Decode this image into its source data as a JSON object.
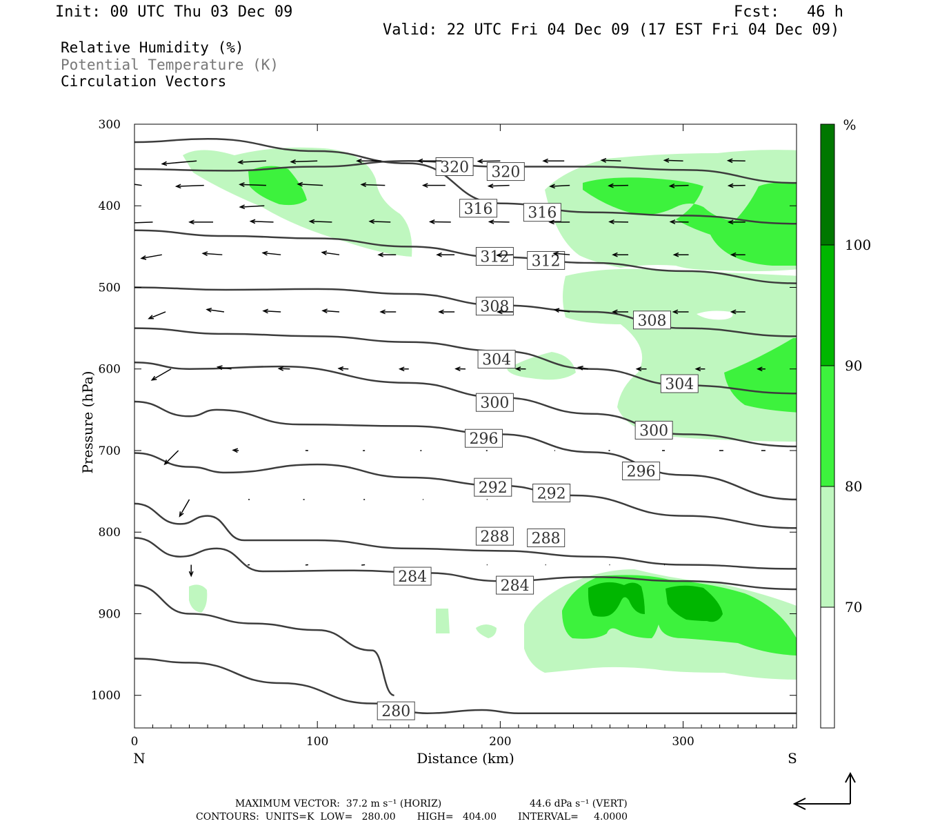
{
  "header": {
    "init": "Init: 00 UTC Thu 03 Dec 09",
    "fcst": "Fcst:   46 h",
    "valid": "Valid: 22 UTC Fri 04 Dec 09 (17 EST Fri 04 Dec 09)"
  },
  "legend": {
    "line1": "Relative Humidity (%)",
    "line2": "Potential Temperature (K)",
    "line3": "Circulation Vectors"
  },
  "colors": {
    "rh70": "#bff7bf",
    "rh80": "#3df23d",
    "rh90": "#00b600",
    "rh100": "#007700",
    "theta": "#3c3c3c",
    "vector": "#000000"
  },
  "chart_data": {
    "type": "contour",
    "xlabel": "Distance (km)",
    "ylabel": "Pressure (hPa)",
    "xlim": [
      0,
      362
    ],
    "ylim": [
      1040,
      300
    ],
    "x_ticks": [
      0,
      100,
      200,
      300
    ],
    "y_ticks": [
      300,
      400,
      500,
      600,
      700,
      800,
      900,
      1000
    ],
    "x_end_labels": [
      "N",
      "S"
    ],
    "colorbar": {
      "unit": "%",
      "levels": [
        70,
        80,
        90,
        100
      ]
    },
    "theta_contours": [
      {
        "label": "320",
        "points": [
          [
            0,
            355
          ],
          [
            50,
            357
          ],
          [
            100,
            352
          ],
          [
            150,
            345
          ],
          [
            200,
            352
          ],
          [
            250,
            352
          ],
          [
            300,
            356
          ],
          [
            362,
            372
          ]
        ],
        "label_at": [
          [
            175,
            352
          ],
          [
            203,
            358
          ]
        ]
      },
      {
        "label": "316",
        "points": [
          [
            0,
            322
          ],
          [
            40,
            318
          ],
          [
            100,
            333
          ],
          [
            150,
            348
          ],
          [
            200,
            397
          ],
          [
            250,
            408
          ],
          [
            300,
            412
          ],
          [
            362,
            422
          ]
        ],
        "label_at": [
          [
            188,
            403
          ],
          [
            223,
            408
          ]
        ]
      },
      {
        "label": "312",
        "points": [
          [
            0,
            430
          ],
          [
            50,
            437
          ],
          [
            100,
            440
          ],
          [
            150,
            450
          ],
          [
            200,
            463
          ],
          [
            250,
            470
          ],
          [
            300,
            480
          ],
          [
            362,
            495
          ]
        ],
        "label_at": [
          [
            197,
            462
          ],
          [
            225,
            467
          ]
        ]
      },
      {
        "label": "308",
        "points": [
          [
            0,
            500
          ],
          [
            50,
            503
          ],
          [
            100,
            502
          ],
          [
            150,
            508
          ],
          [
            200,
            522
          ],
          [
            250,
            530
          ],
          [
            300,
            550
          ],
          [
            362,
            560
          ]
        ],
        "label_at": [
          [
            197,
            523
          ],
          [
            283,
            540
          ]
        ]
      },
      {
        "label": "304",
        "points": [
          [
            0,
            550
          ],
          [
            50,
            557
          ],
          [
            100,
            560
          ],
          [
            150,
            567
          ],
          [
            200,
            578
          ],
          [
            250,
            600
          ],
          [
            300,
            620
          ],
          [
            362,
            630
          ]
        ],
        "label_at": [
          [
            198,
            588
          ],
          [
            298,
            618
          ]
        ]
      },
      {
        "label": "300",
        "points": [
          [
            0,
            592
          ],
          [
            30,
            600
          ],
          [
            80,
            597
          ],
          [
            150,
            617
          ],
          [
            200,
            635
          ],
          [
            250,
            655
          ],
          [
            300,
            680
          ],
          [
            362,
            695
          ]
        ],
        "label_at": [
          [
            197,
            641
          ],
          [
            284,
            675
          ]
        ]
      },
      {
        "label": "296",
        "points": [
          [
            0,
            640
          ],
          [
            30,
            658
          ],
          [
            45,
            650
          ],
          [
            90,
            668
          ],
          [
            150,
            670
          ],
          [
            200,
            680
          ],
          [
            250,
            702
          ],
          [
            300,
            730
          ],
          [
            362,
            760
          ]
        ],
        "label_at": [
          [
            191,
            685
          ],
          [
            277,
            725
          ]
        ]
      },
      {
        "label": "292",
        "points": [
          [
            0,
            703
          ],
          [
            30,
            720
          ],
          [
            50,
            727
          ],
          [
            100,
            717
          ],
          [
            150,
            733
          ],
          [
            200,
            743
          ],
          [
            240,
            755
          ],
          [
            300,
            780
          ],
          [
            362,
            795
          ]
        ],
        "label_at": [
          [
            196,
            745
          ],
          [
            228,
            752
          ]
        ]
      },
      {
        "label": "288",
        "points": [
          [
            0,
            765
          ],
          [
            25,
            790
          ],
          [
            40,
            780
          ],
          [
            60,
            810
          ],
          [
            100,
            810
          ],
          [
            150,
            820
          ],
          [
            200,
            823
          ],
          [
            250,
            830
          ],
          [
            300,
            840
          ],
          [
            362,
            845
          ]
        ],
        "label_at": [
          [
            197,
            805
          ],
          [
            225,
            807
          ]
        ]
      },
      {
        "label": "284",
        "points": [
          [
            0,
            807
          ],
          [
            25,
            830
          ],
          [
            45,
            820
          ],
          [
            70,
            848
          ],
          [
            120,
            847
          ],
          [
            160,
            850
          ],
          [
            200,
            860
          ],
          [
            250,
            855
          ],
          [
            300,
            860
          ],
          [
            362,
            870
          ]
        ],
        "label_at": [
          [
            152,
            854
          ],
          [
            208,
            865
          ]
        ]
      },
      {
        "label": "280",
        "points": [
          [
            0,
            865
          ],
          [
            30,
            900
          ],
          [
            65,
            912
          ],
          [
            100,
            920
          ],
          [
            130,
            945
          ],
          [
            142,
            1000
          ]
        ],
        "label_at": [
          [
            143,
            1019
          ]
        ]
      },
      {
        "label": "",
        "points": [
          [
            0,
            955
          ],
          [
            30,
            960
          ],
          [
            80,
            985
          ],
          [
            130,
            1010
          ],
          [
            160,
            1022
          ],
          [
            190,
            1018
          ],
          [
            210,
            1022
          ],
          [
            362,
            1022
          ]
        ],
        "label_at": []
      }
    ],
    "footer": {
      "line1a": "MAXIMUM VECTOR:  37.2 m s⁻¹ (HORIZ)",
      "line1b": "44.6 dPa s⁻¹ (VERT)",
      "line2": "CONTOURS:  UNITS=K  LOW=   280.00       HIGH=   404.00       INTERVAL=     4.0000"
    }
  }
}
